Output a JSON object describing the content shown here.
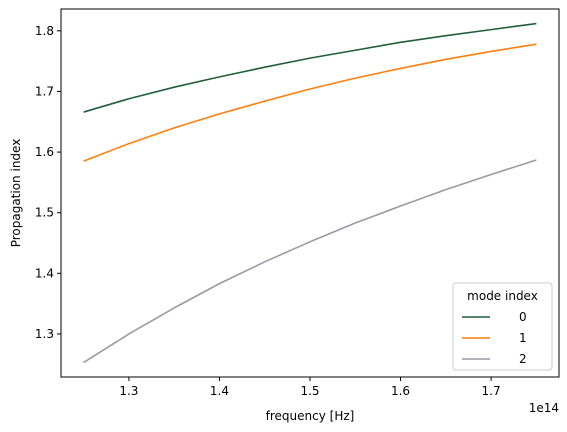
{
  "chart_data": {
    "type": "line",
    "xlabel": "frequency [Hz]",
    "ylabel": "Propagation index",
    "x_offset_text": "1e14",
    "xlim": [
      1.225,
      1.775
    ],
    "ylim": [
      1.229,
      1.836
    ],
    "x_scale_factor": 100000000000000.0,
    "x_ticks": [
      1.3,
      1.4,
      1.5,
      1.6,
      1.7
    ],
    "x_tick_labels": [
      "1.3",
      "1.4",
      "1.5",
      "1.6",
      "1.7"
    ],
    "y_ticks": [
      1.3,
      1.4,
      1.5,
      1.6,
      1.7,
      1.8
    ],
    "y_tick_labels": [
      "1.3",
      "1.4",
      "1.5",
      "1.6",
      "1.7",
      "1.8"
    ],
    "grid": false,
    "legend": {
      "title": "mode index",
      "placement": "lower right"
    },
    "x": [
      1.25,
      1.3,
      1.35,
      1.4,
      1.45,
      1.5,
      1.55,
      1.6,
      1.65,
      1.7,
      1.75
    ],
    "series": [
      {
        "name": "0",
        "color": "#1f5f3a",
        "values": [
          1.666,
          1.688,
          1.707,
          1.724,
          1.74,
          1.755,
          1.768,
          1.781,
          1.792,
          1.802,
          1.812
        ]
      },
      {
        "name": "1",
        "color": "#ff7f0e",
        "values": [
          1.585,
          1.614,
          1.64,
          1.663,
          1.684,
          1.704,
          1.722,
          1.738,
          1.753,
          1.766,
          1.778
        ]
      },
      {
        "name": "2",
        "color": "#9a99a6",
        "values": [
          1.253,
          1.3,
          1.343,
          1.383,
          1.419,
          1.452,
          1.483,
          1.511,
          1.538,
          1.563,
          1.587
        ]
      }
    ]
  }
}
